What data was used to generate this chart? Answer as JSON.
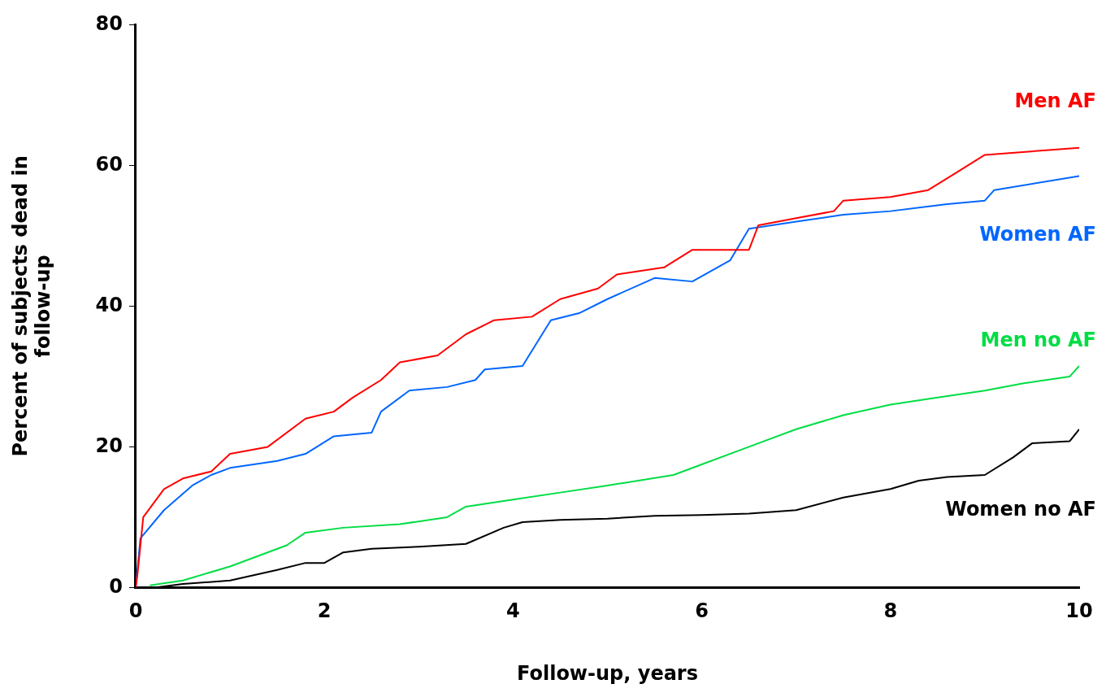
{
  "chart_data": {
    "type": "line",
    "xlabel": "Follow-up, years",
    "ylabel": "Percent of subjects dead in follow-up",
    "xlim": [
      0,
      10
    ],
    "xticks": [
      0,
      2,
      4,
      6,
      8,
      10
    ],
    "ylim": [
      0,
      80
    ],
    "yticks": [
      0,
      20,
      40,
      60,
      80
    ],
    "grid": false,
    "legend": false,
    "marker": "none",
    "line_style": "solid",
    "series": [
      {
        "name": "Men AF",
        "color": "#ff0000",
        "x": [
          0,
          0.02,
          0.08,
          0.3,
          0.5,
          0.8,
          1.0,
          1.4,
          1.8,
          2.1,
          2.3,
          2.6,
          2.8,
          3.2,
          3.5,
          3.8,
          4.2,
          4.5,
          4.9,
          5.1,
          5.6,
          5.9,
          6.5,
          6.6,
          7.0,
          7.4,
          7.5,
          8.0,
          8.4,
          8.7,
          9.0,
          10.0
        ],
        "values": [
          0,
          2,
          10,
          14,
          15.5,
          16.5,
          19,
          20,
          24,
          25,
          27,
          29.5,
          32,
          33,
          36,
          38,
          38.5,
          41,
          42.5,
          44.5,
          45.5,
          48,
          48,
          51.5,
          52.5,
          53.5,
          55,
          55.5,
          56.5,
          59,
          61.5,
          62.5
        ]
      },
      {
        "name": "Women AF",
        "color": "#0066ff",
        "x": [
          0,
          0.05,
          0.3,
          0.6,
          0.8,
          1.0,
          1.5,
          1.8,
          2.1,
          2.5,
          2.6,
          2.9,
          3.3,
          3.6,
          3.7,
          4.1,
          4.4,
          4.7,
          5.0,
          5.5,
          5.9,
          6.3,
          6.5,
          7.0,
          7.5,
          8.0,
          8.6,
          9.0,
          9.1,
          10.0
        ],
        "values": [
          0,
          7,
          11,
          14.5,
          16,
          17,
          18,
          19,
          21.5,
          22,
          25,
          28,
          28.5,
          29.5,
          31,
          31.5,
          38,
          39,
          41,
          44,
          43.5,
          46.5,
          51,
          52,
          53,
          53.5,
          54.5,
          55,
          56.5,
          58.5
        ]
      },
      {
        "name": "Men no AF",
        "color": "#00dd44",
        "x": [
          0.15,
          0.5,
          1.0,
          1.6,
          1.8,
          2.2,
          2.8,
          3.3,
          3.5,
          4.0,
          4.5,
          5.0,
          5.7,
          6.0,
          6.5,
          7.0,
          7.5,
          8.0,
          8.5,
          9.0,
          9.4,
          9.9,
          10.0
        ],
        "values": [
          0.3,
          1,
          3,
          6,
          7.8,
          8.5,
          9,
          10,
          11.5,
          12.5,
          13.5,
          14.5,
          16,
          17.5,
          20,
          22.5,
          24.5,
          26,
          27,
          28,
          29,
          30,
          31.5
        ]
      },
      {
        "name": "Women no AF",
        "color": "#000000",
        "x": [
          0.2,
          0.5,
          1.0,
          1.5,
          1.8,
          2.0,
          2.2,
          2.5,
          3.0,
          3.5,
          3.9,
          4.1,
          4.5,
          5.0,
          5.5,
          6.0,
          6.5,
          7.0,
          7.5,
          8.0,
          8.3,
          8.6,
          9.0,
          9.3,
          9.5,
          9.9,
          10.0
        ],
        "values": [
          0,
          0.5,
          1,
          2.5,
          3.5,
          3.5,
          5,
          5.5,
          5.8,
          6.2,
          8.5,
          9.3,
          9.6,
          9.8,
          10.2,
          10.3,
          10.5,
          11,
          12.8,
          14,
          15.2,
          15.7,
          16,
          18.5,
          20.5,
          20.8,
          22.5
        ]
      }
    ]
  }
}
